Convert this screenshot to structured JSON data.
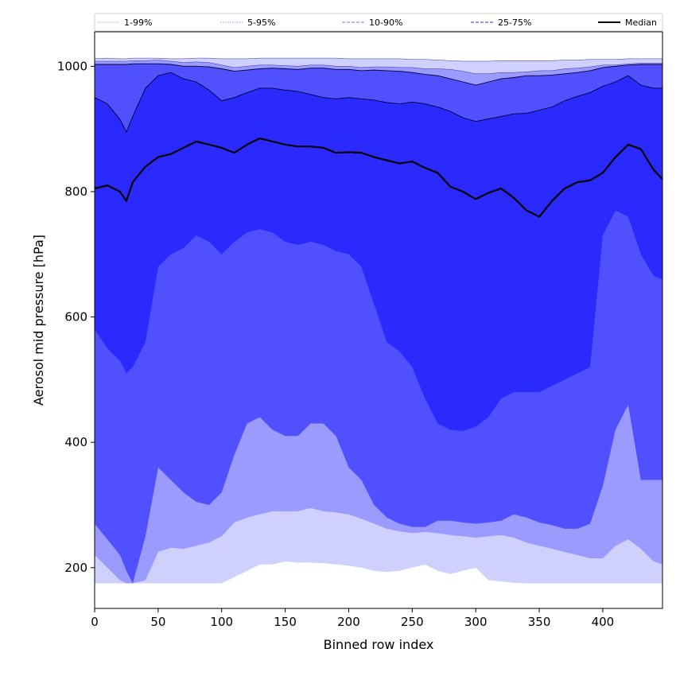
{
  "chart_data": {
    "type": "area",
    "title": "",
    "xlabel": "Binned row index",
    "ylabel": "Aerosol mid pressure [hPa]",
    "xlim": [
      0,
      447
    ],
    "ylim": [
      135,
      1055
    ],
    "xticks": [
      0,
      50,
      100,
      150,
      200,
      250,
      300,
      350,
      400
    ],
    "yticks": [
      200,
      400,
      600,
      800,
      1000
    ],
    "grid": false,
    "legend_position": "top",
    "legend": [
      {
        "label": "1-99%",
        "color": "#d7d7ff",
        "style": "solid"
      },
      {
        "label": "5-95%",
        "color": "#a6a6ff",
        "style": "dotted"
      },
      {
        "label": "10-90%",
        "color": "#8a8aff",
        "style": "dashed"
      },
      {
        "label": "25-75%",
        "color": "#5050ff",
        "style": "dashed"
      },
      {
        "label": "Median",
        "color": "#000000",
        "style": "solid"
      }
    ],
    "x": [
      0,
      10,
      20,
      25,
      30,
      40,
      50,
      60,
      70,
      80,
      90,
      100,
      110,
      120,
      130,
      140,
      150,
      160,
      170,
      180,
      190,
      200,
      210,
      220,
      230,
      240,
      250,
      260,
      270,
      280,
      290,
      300,
      310,
      320,
      330,
      340,
      350,
      360,
      370,
      380,
      390,
      400,
      410,
      420,
      430,
      440,
      447
    ],
    "series": [
      {
        "name": "1-99%",
        "fill": "#d0d0ff",
        "upper": [
          1012,
          1013,
          1012,
          1012,
          1013,
          1013,
          1013,
          1012,
          1012,
          1013,
          1013,
          1012,
          1012,
          1012,
          1013,
          1013,
          1013,
          1013,
          1013,
          1013,
          1013,
          1012,
          1012,
          1012,
          1012,
          1012,
          1011,
          1011,
          1010,
          1009,
          1008,
          1008,
          1008,
          1009,
          1009,
          1009,
          1009,
          1009,
          1010,
          1010,
          1011,
          1011,
          1011,
          1012,
          1012,
          1012,
          1012
        ],
        "lower": [
          175,
          175,
          175,
          175,
          175,
          175,
          175,
          175,
          175,
          175,
          175,
          175,
          185,
          195,
          205,
          205,
          210,
          208,
          208,
          207,
          205,
          203,
          200,
          195,
          193,
          195,
          200,
          205,
          195,
          190,
          195,
          200,
          180,
          178,
          176,
          175,
          175,
          175,
          175,
          175,
          175,
          175,
          175,
          175,
          175,
          175,
          175
        ]
      },
      {
        "name": "5-95%",
        "fill": "#9a9aff",
        "upper": [
          1008,
          1008,
          1008,
          1008,
          1009,
          1009,
          1010,
          1008,
          1006,
          1007,
          1006,
          1002,
          998,
          1000,
          1002,
          1002,
          1001,
          1000,
          1002,
          1002,
          1000,
          1000,
          998,
          999,
          999,
          998,
          998,
          996,
          996,
          995,
          992,
          988,
          988,
          990,
          990,
          991,
          993,
          993,
          996,
          997,
          999,
          1002,
          1002,
          1004,
          1005,
          1005,
          1005
        ],
        "lower": [
          220,
          200,
          180,
          175,
          175,
          180,
          225,
          232,
          230,
          235,
          240,
          250,
          272,
          280,
          285,
          290,
          290,
          290,
          295,
          290,
          288,
          285,
          278,
          270,
          262,
          258,
          255,
          257,
          255,
          252,
          250,
          248,
          250,
          252,
          248,
          240,
          235,
          230,
          225,
          220,
          215,
          215,
          235,
          245,
          230,
          210,
          205
        ]
      },
      {
        "name": "10-90%",
        "fill": "#5050ff",
        "upper": [
          1003,
          1003,
          1003,
          1003,
          1004,
          1004,
          1004,
          1003,
          1000,
          1000,
          999,
          996,
          992,
          994,
          996,
          997,
          996,
          995,
          997,
          997,
          995,
          995,
          993,
          994,
          993,
          992,
          990,
          987,
          985,
          980,
          975,
          970,
          975,
          980,
          982,
          985,
          985,
          986,
          988,
          990,
          993,
          998,
          1000,
          1002,
          1003,
          1003,
          1003
        ],
        "lower": [
          270,
          245,
          220,
          195,
          175,
          250,
          360,
          340,
          320,
          305,
          300,
          320,
          380,
          430,
          440,
          420,
          410,
          410,
          430,
          430,
          410,
          360,
          340,
          300,
          280,
          270,
          265,
          265,
          275,
          275,
          272,
          270,
          272,
          275,
          285,
          280,
          272,
          268,
          262,
          262,
          270,
          330,
          420,
          460,
          340,
          340,
          340
        ]
      },
      {
        "name": "25-75%",
        "fill": "#2a2aff",
        "upper": [
          950,
          940,
          915,
          895,
          920,
          965,
          985,
          990,
          980,
          975,
          962,
          945,
          950,
          958,
          965,
          965,
          962,
          960,
          955,
          950,
          948,
          950,
          948,
          946,
          942,
          940,
          943,
          940,
          935,
          928,
          918,
          912,
          916,
          920,
          924,
          925,
          930,
          935,
          945,
          952,
          958,
          968,
          975,
          985,
          970,
          965,
          965
        ],
        "lower": [
          580,
          550,
          530,
          510,
          520,
          560,
          680,
          700,
          710,
          730,
          720,
          700,
          720,
          735,
          740,
          735,
          720,
          715,
          720,
          715,
          705,
          700,
          680,
          620,
          560,
          545,
          520,
          470,
          430,
          420,
          418,
          425,
          440,
          470,
          480,
          480,
          480,
          490,
          500,
          510,
          520,
          730,
          770,
          760,
          700,
          665,
          660
        ]
      }
    ],
    "median": [
      805,
      810,
      800,
      785,
      815,
      840,
      855,
      860,
      870,
      880,
      875,
      870,
      862,
      875,
      885,
      880,
      875,
      872,
      872,
      870,
      862,
      863,
      862,
      855,
      850,
      845,
      848,
      838,
      830,
      808,
      800,
      788,
      798,
      805,
      790,
      770,
      760,
      785,
      805,
      815,
      818,
      830,
      855,
      875,
      868,
      835,
      820
    ]
  }
}
